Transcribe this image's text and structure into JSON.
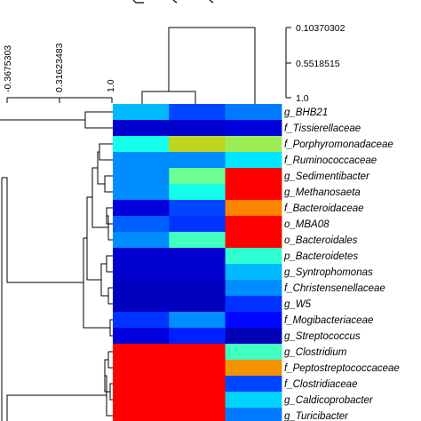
{
  "chart_data": {
    "type": "heatmap",
    "title": "",
    "rows": [
      "g_BHB21",
      "f_Tissierellaceae",
      "f_Porphyromonadaceae",
      "f_Ruminococcaceae",
      "g_Sedimentibacter",
      "g_Methanosaeta",
      "f_Bacteroidaceae",
      "o_MBA08",
      "o_Bacteroidales",
      "p_Bacteroidetes",
      "g_Syntrophomonas",
      "f_Christensenellaceae",
      "g_W5",
      "f_Mogibacteriaceae",
      "g_Streptococcus",
      "g_Clostridium",
      "f_Peptostreptococcaceae",
      "f_Clostridiaceae",
      "g_Caldicoprobacter",
      "g_Turicibacter"
    ],
    "columns": [
      "",
      "",
      ""
    ],
    "values": [
      [
        0.35,
        0.22,
        0.28
      ],
      [
        0.08,
        0.08,
        0.1
      ],
      [
        0.45,
        0.68,
        0.62
      ],
      [
        0.3,
        0.3,
        0.4
      ],
      [
        0.3,
        0.55,
        1.0
      ],
      [
        0.3,
        0.45,
        1.0
      ],
      [
        0.1,
        0.22,
        0.85
      ],
      [
        0.25,
        0.2,
        1.0
      ],
      [
        0.3,
        0.5,
        1.0
      ],
      [
        0.08,
        0.08,
        0.48
      ],
      [
        0.08,
        0.08,
        0.35
      ],
      [
        0.06,
        0.06,
        0.3
      ],
      [
        0.06,
        0.06,
        0.2
      ],
      [
        0.2,
        0.3,
        0.15
      ],
      [
        0.1,
        0.18,
        0.05
      ],
      [
        1.0,
        1.0,
        0.5
      ],
      [
        1.0,
        1.0,
        0.82
      ],
      [
        1.0,
        1.0,
        0.22
      ],
      [
        1.0,
        1.0,
        0.38
      ],
      [
        1.0,
        1.0,
        0.28
      ]
    ],
    "colormap": [
      "#00008f",
      "#0000ff",
      "#0080ff",
      "#00ffff",
      "#80ff80",
      "#d4c800",
      "#ff8000",
      "#ff0000"
    ],
    "row_axis_ticks": [
      "-0.3675303",
      "0.31623483",
      "1.0"
    ],
    "column_axis_ticks": [
      "0.10370302",
      "0.5518515",
      "1.0"
    ]
  }
}
